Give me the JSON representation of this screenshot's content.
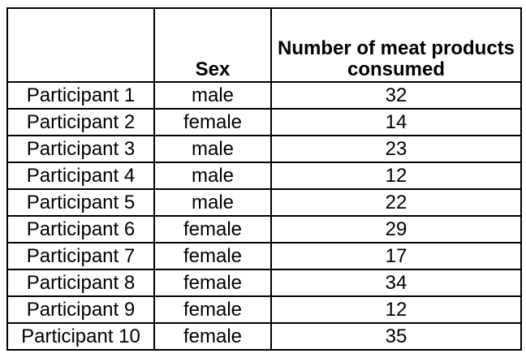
{
  "table": {
    "headers": [
      "",
      "Sex",
      "Number of meat products consumed"
    ],
    "rows": [
      {
        "participant": "Participant 1",
        "sex": "male",
        "count": "32"
      },
      {
        "participant": "Participant 2",
        "sex": "female",
        "count": "14"
      },
      {
        "participant": "Participant 3",
        "sex": "male",
        "count": "23"
      },
      {
        "participant": "Participant 4",
        "sex": "male",
        "count": "12"
      },
      {
        "participant": "Participant 5",
        "sex": "male",
        "count": "22"
      },
      {
        "participant": "Participant 6",
        "sex": "female",
        "count": "29"
      },
      {
        "participant": "Participant 7",
        "sex": "female",
        "count": "17"
      },
      {
        "participant": "Participant 8",
        "sex": "female",
        "count": "34"
      },
      {
        "participant": "Participant 9",
        "sex": "female",
        "count": "12"
      },
      {
        "participant": "Participant 10",
        "sex": "female",
        "count": "35"
      }
    ]
  }
}
